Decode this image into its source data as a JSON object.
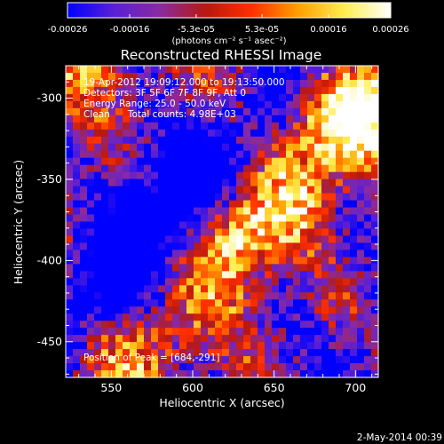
{
  "stamp": "2-May-2014 00:39",
  "chart_data": {
    "type": "heatmap",
    "title": "Reconstructed RHESSI Image",
    "xlabel": "Heliocentric X (arcsec)",
    "ylabel": "Heliocentric Y (arcsec)",
    "xlim": [
      522,
      714
    ],
    "ylim": [
      -472,
      -280
    ],
    "xticks": [
      "550",
      "600",
      "650",
      "700"
    ],
    "yticks": [
      "-300",
      "-350",
      "-400",
      "-450"
    ],
    "xtick_values": [
      550,
      600,
      650,
      700
    ],
    "ytick_values": [
      -300,
      -350,
      -400,
      -450
    ],
    "colorbar": {
      "min": -0.00026,
      "max": 0.00026,
      "ticks": [
        "-0.00026",
        "-0.00016",
        "-5.3e-05",
        "5.3e-05",
        "0.00016",
        "0.00026"
      ],
      "tick_values": [
        -0.00026,
        -0.00016,
        -5.3e-05,
        5.3e-05,
        0.00016,
        0.00026
      ],
      "unit_label": "(photons cm⁻² s⁻¹ asec⁻²)",
      "colormap": [
        "#0000ff",
        "#5a1fd6",
        "#8a2aa0",
        "#b8180e",
        "#ff3000",
        "#ffa000",
        "#ffee50",
        "#ffffff"
      ]
    },
    "annotations": [
      "19-Apr-2012 19:09:12.000 to 19:13:50.000",
      "Detectors: 3F 5F 6F 7F 8F 9F, Att 0",
      "Energy Range: 25.0 - 50.0 keV",
      "Clean      Total counts: 4.98E+03",
      "Position of Peak = [684,-291]"
    ],
    "peak": [
      684,
      -291
    ]
  }
}
